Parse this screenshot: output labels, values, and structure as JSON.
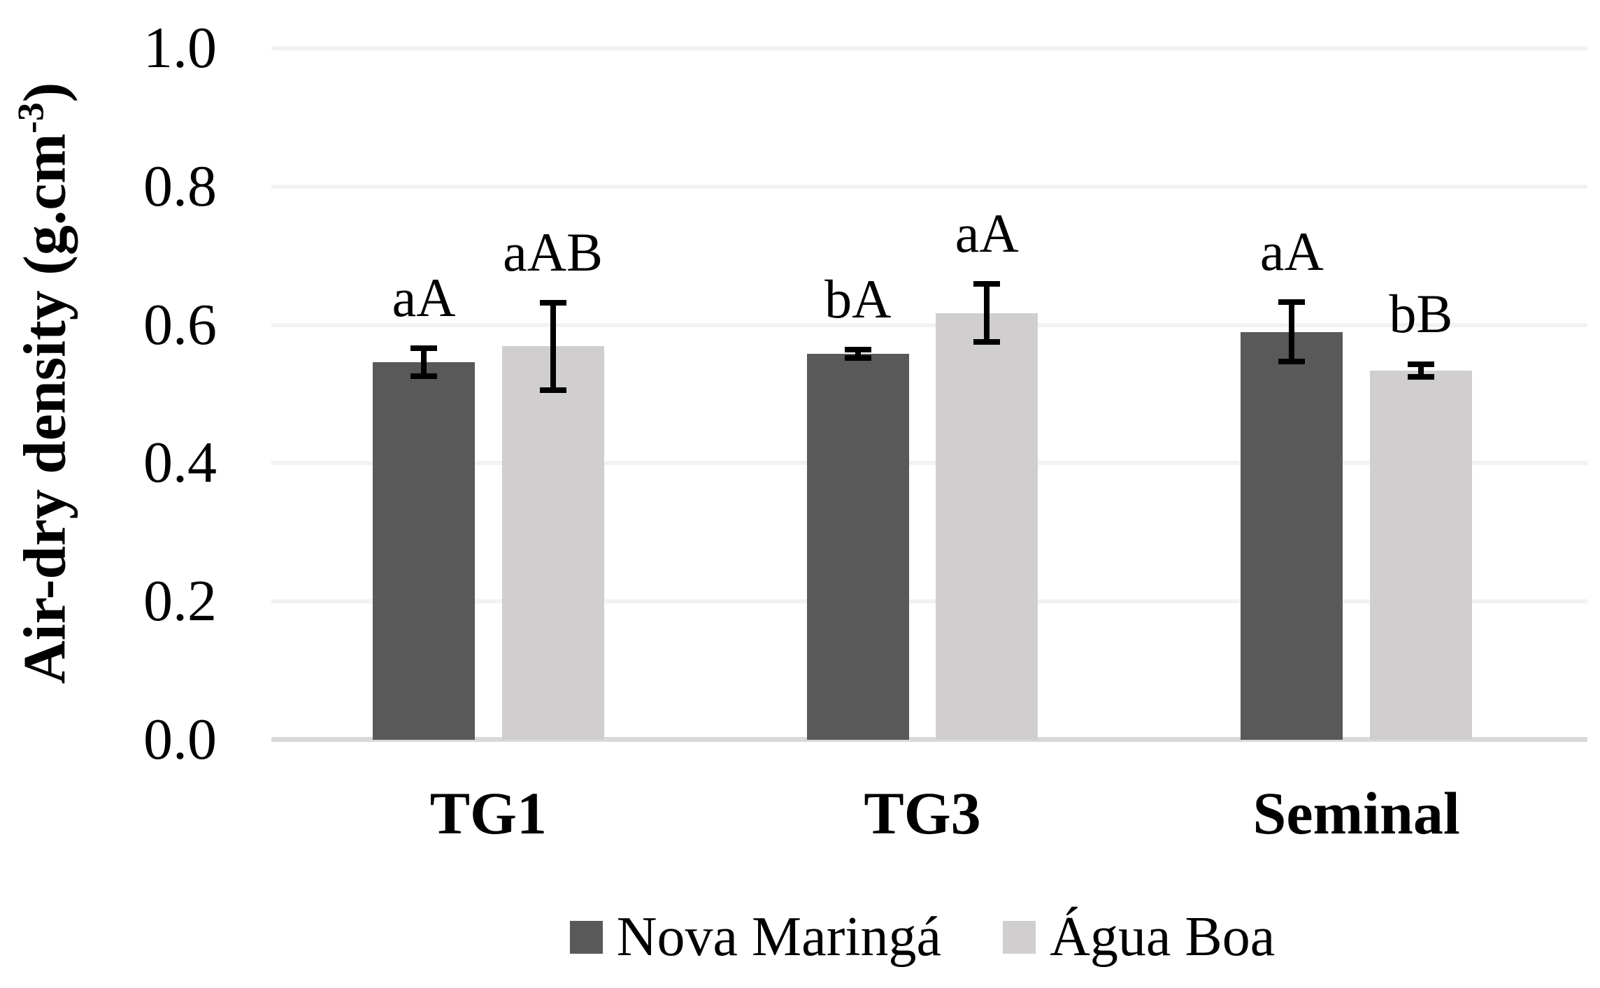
{
  "chart_data": {
    "type": "bar",
    "title": "",
    "categories": [
      "TG1",
      "TG3",
      "Seminal"
    ],
    "series": [
      {
        "name": "Nova Maringá",
        "color": "#595959",
        "values": [
          0.546,
          0.558,
          0.59
        ],
        "errors": [
          0.02,
          0.006,
          0.043
        ],
        "annotations": [
          "aA",
          "bA",
          "aA"
        ]
      },
      {
        "name": "Água Boa",
        "color": "#d0cece",
        "values": [
          0.569,
          0.617,
          0.534
        ],
        "errors": [
          0.063,
          0.042,
          0.009
        ],
        "annotations": [
          "aAB",
          "aA",
          "bB"
        ]
      }
    ],
    "y_axis": {
      "title_main": "Air-dry density (g.cm",
      "title_sup": "-3",
      "title_end": ")",
      "ticks": [
        {
          "label": "1.0",
          "value": 1.0
        },
        {
          "label": "0.8",
          "value": 0.8
        },
        {
          "label": "0.6",
          "value": 0.6
        },
        {
          "label": "0.4",
          "value": 0.4
        },
        {
          "label": "0.2",
          "value": 0.2
        },
        {
          "label": "0.0",
          "value": 0.0
        }
      ]
    },
    "ylim": [
      0.0,
      1.0
    ],
    "xlabel": "",
    "ylabel": "Air-dry density (g.cm-3)",
    "grid": "horizontal",
    "grid_color": "#f2f2f2",
    "axis_line_color": "#d9d9d9",
    "error_bar_color": "#000000",
    "legend_position": "bottom"
  }
}
